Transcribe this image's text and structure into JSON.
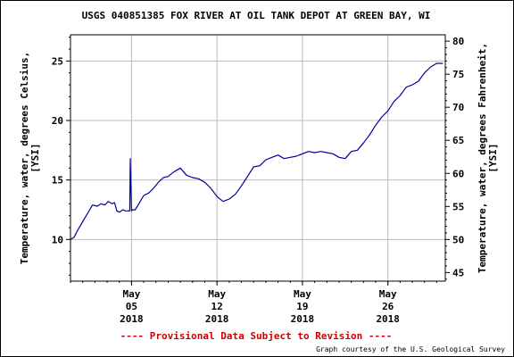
{
  "chart_data": {
    "type": "line",
    "title": "USGS 040851385 FOX RIVER AT OIL TANK DEPOT AT GREEN BAY, WI",
    "ylabel_left": [
      "Temperature, water, degrees Celsius,",
      "[YSI]"
    ],
    "ylabel_right": [
      "Temperature, water, degrees Fahrenheit,",
      "[YSI]"
    ],
    "ylim": [
      6.5,
      27.2
    ],
    "yticks_left": [
      10,
      15,
      20,
      25
    ],
    "yticks_right": [
      45,
      50,
      55,
      60,
      65,
      70,
      75,
      80
    ],
    "xlim": [
      0,
      30.7
    ],
    "xticks": [
      {
        "x": 5,
        "lines": [
          "May",
          "05",
          "2018"
        ]
      },
      {
        "x": 12,
        "lines": [
          "May",
          "12",
          "2018"
        ]
      },
      {
        "x": 19,
        "lines": [
          "May",
          "19",
          "2018"
        ]
      },
      {
        "x": 26,
        "lines": [
          "May",
          "26",
          "2018"
        ]
      }
    ],
    "grid": true,
    "line_color": "#000099",
    "series": [
      {
        "x": [
          0.0,
          0.3,
          0.6,
          1.0,
          1.4,
          1.8,
          2.2,
          2.5,
          2.8,
          3.1,
          3.4,
          3.6,
          3.8,
          4.0,
          4.3,
          4.5,
          4.7,
          4.85,
          4.9,
          5.0,
          5.1,
          5.3,
          5.6,
          6.0,
          6.4,
          6.8,
          7.2,
          7.6,
          8.0,
          8.5,
          9.0,
          9.5,
          10.0,
          10.5,
          11.0,
          11.5,
          12.0,
          12.5,
          13.0,
          13.5,
          14.0,
          14.5,
          15.0,
          15.5,
          16.0,
          16.5,
          17.0,
          17.5,
          18.0,
          18.5,
          19.0,
          19.5,
          20.0,
          20.5,
          21.0,
          21.5,
          22.0,
          22.5,
          23.0,
          23.5,
          24.0,
          24.5,
          25.0,
          25.5,
          26.0,
          26.5,
          27.0,
          27.5,
          28.0,
          28.5,
          29.0,
          29.5,
          30.0,
          30.5
        ],
        "y": [
          10.0,
          10.2,
          10.8,
          11.5,
          12.2,
          12.9,
          12.8,
          13.0,
          12.9,
          13.2,
          13.0,
          13.1,
          12.4,
          12.3,
          12.5,
          12.4,
          12.4,
          12.4,
          16.8,
          12.4,
          12.5,
          12.5,
          13.0,
          13.7,
          13.9,
          14.3,
          14.8,
          15.2,
          15.3,
          15.7,
          16.0,
          15.4,
          15.2,
          15.1,
          14.8,
          14.3,
          13.6,
          13.2,
          13.4,
          13.8,
          14.5,
          15.3,
          16.1,
          16.2,
          16.7,
          16.9,
          17.1,
          16.8,
          16.9,
          17.0,
          17.2,
          17.4,
          17.3,
          17.4,
          17.3,
          17.2,
          16.9,
          16.8,
          17.4,
          17.5,
          18.1,
          18.8,
          19.6,
          20.3,
          20.8,
          21.6,
          22.1,
          22.8,
          23.0,
          23.3,
          24.0,
          24.5,
          24.8,
          24.8
        ]
      }
    ]
  },
  "footer": {
    "provisional": "---- Provisional Data Subject to Revision ----",
    "credit": "Graph courtesy of the U.S. Geological Survey"
  }
}
